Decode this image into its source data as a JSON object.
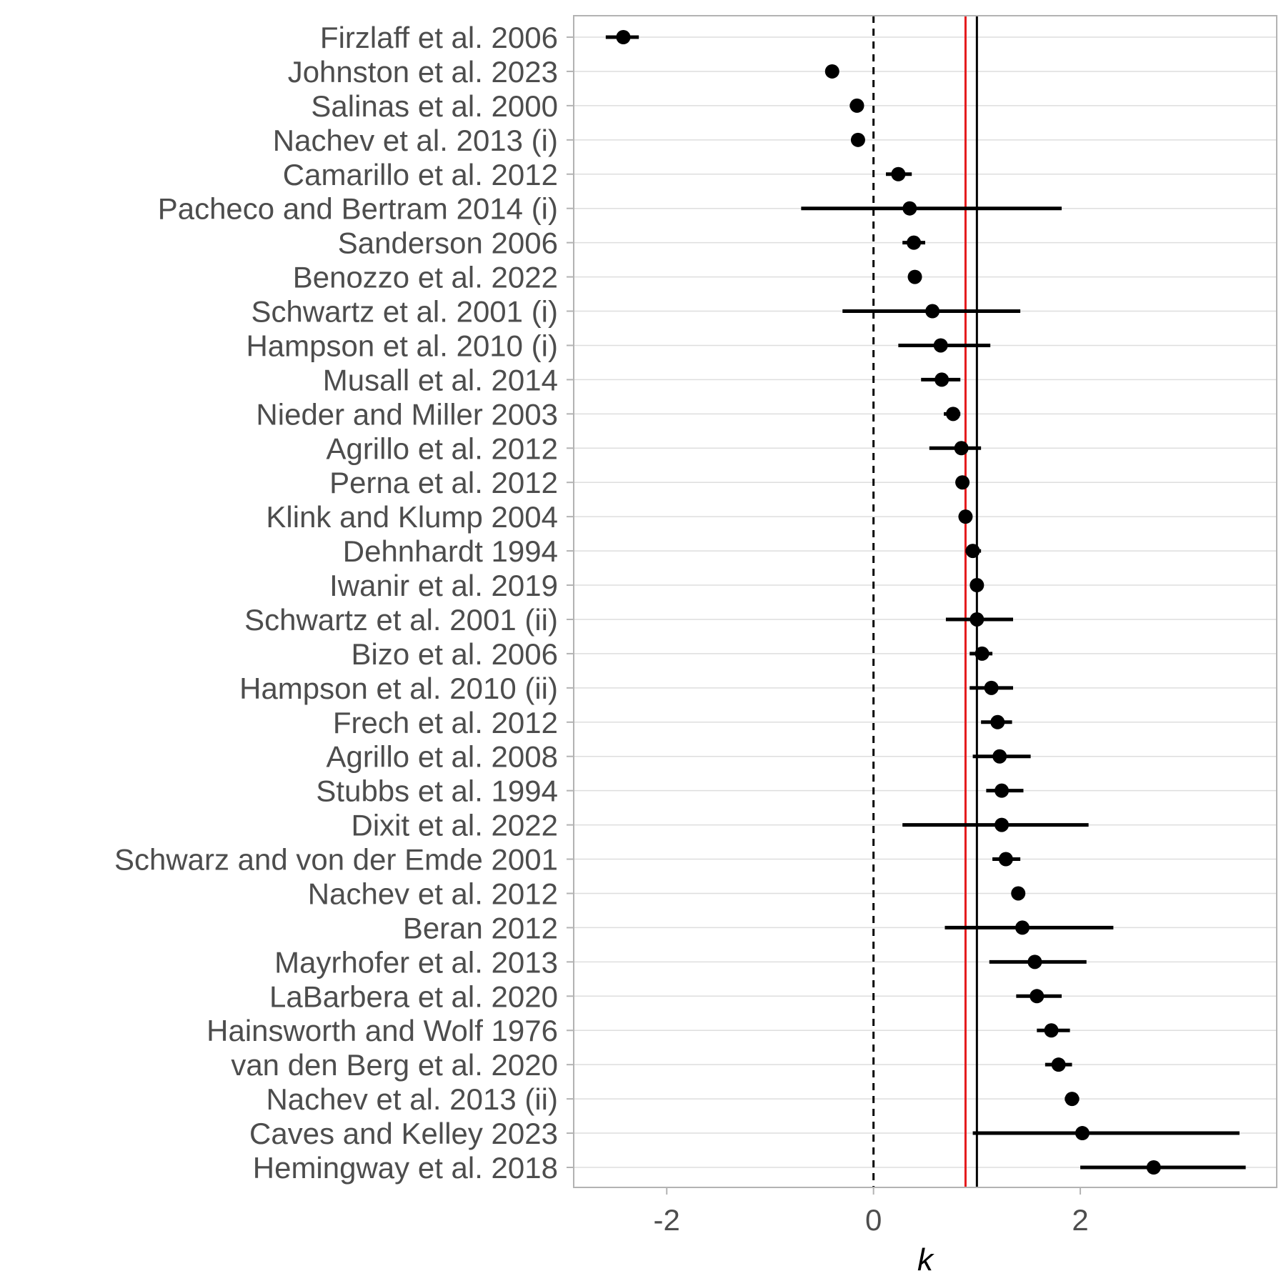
{
  "chart_data": {
    "type": "forest",
    "title": "",
    "xlabel": "k",
    "ylabel": "",
    "xlim": [
      -2.9,
      3.9
    ],
    "xticks": [
      -2,
      0,
      2
    ],
    "grid": "horizontal",
    "reference_lines": [
      {
        "value": 0,
        "style": "dashed",
        "color": "#000000"
      },
      {
        "value": 1,
        "style": "solid",
        "color": "#000000"
      },
      {
        "value": 0.89,
        "style": "solid",
        "color": "#e41a1c"
      }
    ],
    "series": [
      {
        "estimates": [
          {
            "study": "Firzlaff et al. 2006",
            "k": -2.42,
            "lo": -2.59,
            "hi": -2.27
          },
          {
            "study": "Johnston et al. 2023",
            "k": -0.4,
            "lo": -0.4,
            "hi": -0.4
          },
          {
            "study": "Salinas et al. 2000",
            "k": -0.16,
            "lo": -0.23,
            "hi": -0.1
          },
          {
            "study": "Nachev et al. 2013 (i)",
            "k": -0.15,
            "lo": -0.15,
            "hi": -0.15
          },
          {
            "study": "Camarillo et al. 2012",
            "k": 0.24,
            "lo": 0.12,
            "hi": 0.37
          },
          {
            "study": "Pacheco and Bertram 2014 (i)",
            "k": 0.35,
            "lo": -0.7,
            "hi": 1.82
          },
          {
            "study": "Sanderson 2006",
            "k": 0.39,
            "lo": 0.28,
            "hi": 0.5
          },
          {
            "study": "Benozzo et al. 2022",
            "k": 0.4,
            "lo": 0.4,
            "hi": 0.4
          },
          {
            "study": "Schwartz et al. 2001 (i)",
            "k": 0.57,
            "lo": -0.3,
            "hi": 1.42
          },
          {
            "study": "Hampson et al. 2010 (i)",
            "k": 0.65,
            "lo": 0.24,
            "hi": 1.13
          },
          {
            "study": "Musall et al. 2014",
            "k": 0.66,
            "lo": 0.46,
            "hi": 0.84
          },
          {
            "study": "Nieder and Miller 2003",
            "k": 0.77,
            "lo": 0.68,
            "hi": 0.84
          },
          {
            "study": "Agrillo et al. 2012",
            "k": 0.85,
            "lo": 0.54,
            "hi": 1.04
          },
          {
            "study": "Perna et al. 2012",
            "k": 0.86,
            "lo": 0.86,
            "hi": 0.86
          },
          {
            "study": "Klink and Klump 2004",
            "k": 0.89,
            "lo": 0.89,
            "hi": 0.89
          },
          {
            "study": "Dehnhardt 1994",
            "k": 0.96,
            "lo": 0.89,
            "hi": 1.04
          },
          {
            "study": "Iwanir et al. 2019",
            "k": 1.0,
            "lo": 1.0,
            "hi": 1.0
          },
          {
            "study": "Schwartz et al. 2001 (ii)",
            "k": 1.0,
            "lo": 0.7,
            "hi": 1.35
          },
          {
            "study": "Bizo et al. 2006",
            "k": 1.05,
            "lo": 0.93,
            "hi": 1.15
          },
          {
            "study": "Hampson et al. 2010 (ii)",
            "k": 1.14,
            "lo": 0.93,
            "hi": 1.35
          },
          {
            "study": "Frech et al. 2012",
            "k": 1.2,
            "lo": 1.04,
            "hi": 1.34
          },
          {
            "study": "Agrillo et al. 2008",
            "k": 1.22,
            "lo": 0.96,
            "hi": 1.52
          },
          {
            "study": "Stubbs et al. 1994",
            "k": 1.24,
            "lo": 1.09,
            "hi": 1.45
          },
          {
            "study": "Dixit et al. 2022",
            "k": 1.24,
            "lo": 0.28,
            "hi": 2.08
          },
          {
            "study": "Schwarz and von der Emde 2001",
            "k": 1.28,
            "lo": 1.15,
            "hi": 1.42
          },
          {
            "study": "Nachev et al. 2012",
            "k": 1.4,
            "lo": 1.4,
            "hi": 1.4
          },
          {
            "study": "Beran 2012",
            "k": 1.44,
            "lo": 0.69,
            "hi": 2.32
          },
          {
            "study": "Mayrhofer et al. 2013",
            "k": 1.56,
            "lo": 1.12,
            "hi": 2.06
          },
          {
            "study": "LaBarbera et al. 2020",
            "k": 1.58,
            "lo": 1.38,
            "hi": 1.82
          },
          {
            "study": "Hainsworth and Wolf 1976",
            "k": 1.72,
            "lo": 1.58,
            "hi": 1.9
          },
          {
            "study": "van den Berg et al. 2020",
            "k": 1.79,
            "lo": 1.66,
            "hi": 1.92
          },
          {
            "study": "Nachev et al. 2013 (ii)",
            "k": 1.92,
            "lo": 1.85,
            "hi": 1.99
          },
          {
            "study": "Caves and Kelley 2023",
            "k": 2.02,
            "lo": 0.96,
            "hi": 3.54
          },
          {
            "study": "Hemingway et al. 2018",
            "k": 2.71,
            "lo": 2.0,
            "hi": 3.6
          }
        ]
      }
    ]
  }
}
